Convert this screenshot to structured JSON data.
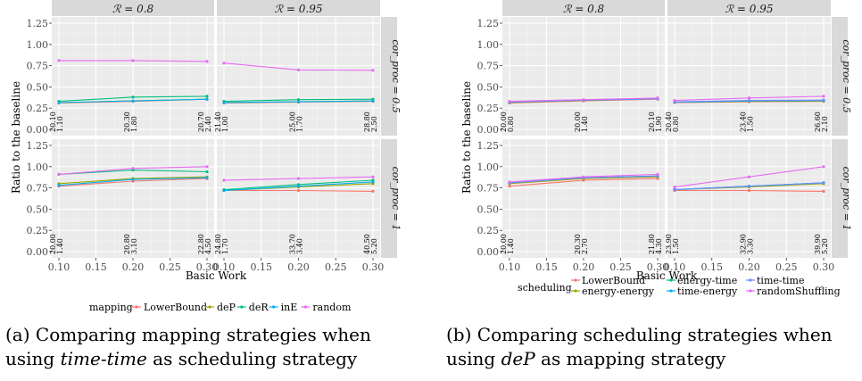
{
  "chart_data": [
    {
      "type": "line",
      "panel_id": "a",
      "xlabel": "Basic Work",
      "ylabel": "Ratio to the baseline",
      "xlim": [
        0.1,
        0.3
      ],
      "ylim": [
        0,
        1.25
      ],
      "x_ticks": [
        "0.10",
        "0.15",
        "0.20",
        "0.25",
        "0.30"
      ],
      "y_ticks": [
        "0.00",
        "0.25",
        "0.50",
        "0.75",
        "1.00",
        "1.25"
      ],
      "col_facets": [
        "ℛ = 0.8",
        "ℛ = 0.95"
      ],
      "row_facets": [
        "cor_proc = 0.5",
        "cor_proc = 1"
      ],
      "grid": true,
      "legend_position": "bottom",
      "legend_title": "mapping",
      "series": [
        {
          "name": "LowerBound",
          "color": "#F8766D"
        },
        {
          "name": "deP",
          "color": "#A3A500"
        },
        {
          "name": "deR",
          "color": "#00BF7D"
        },
        {
          "name": "inE",
          "color": "#00B0F6"
        },
        {
          "name": "random",
          "color": "#E76BF3"
        }
      ],
      "panels": [
        {
          "col": 0,
          "row": 0,
          "x": [
            0.1,
            0.2,
            0.3
          ],
          "labels": [
            [
              "20.10",
              "1.10"
            ],
            [
              "20.30",
              "1.80"
            ],
            [
              "20.70",
              "2.40"
            ]
          ],
          "values": {
            "LowerBound": [
              0.31,
              0.33,
              0.355
            ],
            "deP": [
              0.315,
              0.335,
              0.355
            ],
            "deR": [
              0.33,
              0.38,
              0.39
            ],
            "inE": [
              0.315,
              0.335,
              0.355
            ],
            "random": [
              0.81,
              0.81,
              0.8
            ]
          }
        },
        {
          "col": 1,
          "row": 0,
          "x": [
            0.1,
            0.2,
            0.3
          ],
          "labels": [
            [
              "21.40",
              "1.00"
            ],
            [
              "25.00",
              "1.70"
            ],
            [
              "28.80",
              "2.50"
            ]
          ],
          "values": {
            "LowerBound": [
              0.31,
              0.32,
              0.33
            ],
            "deP": [
              0.315,
              0.325,
              0.335
            ],
            "deR": [
              0.33,
              0.35,
              0.355
            ],
            "inE": [
              0.315,
              0.325,
              0.335
            ],
            "random": [
              0.78,
              0.7,
              0.695
            ]
          }
        },
        {
          "col": 0,
          "row": 1,
          "x": [
            0.1,
            0.2,
            0.3
          ],
          "labels": [
            [
              "20.00",
              "1.40"
            ],
            [
              "20.80",
              "3.10"
            ],
            [
              "22.80",
              "4.50"
            ]
          ],
          "values": {
            "LowerBound": [
              0.77,
              0.83,
              0.86
            ],
            "deP": [
              0.8,
              0.86,
              0.88
            ],
            "deR": [
              0.91,
              0.96,
              0.94
            ],
            "inE": [
              0.78,
              0.85,
              0.87
            ],
            "random": [
              0.91,
              0.98,
              1.0
            ]
          }
        },
        {
          "col": 1,
          "row": 1,
          "x": [
            0.1,
            0.2,
            0.3
          ],
          "labels": [
            [
              "24.80",
              "1.70"
            ],
            [
              "33.70",
              "3.40"
            ],
            [
              "40.50",
              "5.20"
            ]
          ],
          "values": {
            "LowerBound": [
              0.72,
              0.72,
              0.71
            ],
            "deP": [
              0.72,
              0.76,
              0.8
            ],
            "deR": [
              0.73,
              0.79,
              0.84
            ],
            "inE": [
              0.72,
              0.77,
              0.82
            ],
            "random": [
              0.84,
              0.86,
              0.88
            ]
          }
        }
      ]
    },
    {
      "type": "line",
      "panel_id": "b",
      "xlabel": "Basic Work",
      "ylabel": "Ratio to the baseline",
      "xlim": [
        0.1,
        0.3
      ],
      "ylim": [
        0,
        1.25
      ],
      "x_ticks": [
        "0.10",
        "0.15",
        "0.20",
        "0.25",
        "0.30"
      ],
      "y_ticks": [
        "0.00",
        "0.25",
        "0.50",
        "0.75",
        "1.00",
        "1.25"
      ],
      "col_facets": [
        "ℛ = 0.8",
        "ℛ = 0.95"
      ],
      "row_facets": [
        "cor_proc = 0.5",
        "cor_proc = 1"
      ],
      "grid": true,
      "legend_position": "bottom",
      "legend_title": "scheduling",
      "series": [
        {
          "name": "LowerBound",
          "color": "#F8766D"
        },
        {
          "name": "energy-energy",
          "color": "#A3A500"
        },
        {
          "name": "energy-time",
          "color": "#00BF7D"
        },
        {
          "name": "time-energy",
          "color": "#00B0F6"
        },
        {
          "name": "time-time",
          "color": "#6F8CFF"
        },
        {
          "name": "randomShuffling",
          "color": "#E76BF3"
        }
      ],
      "panels": [
        {
          "col": 0,
          "row": 0,
          "x": [
            0.1,
            0.2,
            0.3
          ],
          "labels": [
            [
              "20.00",
              "0.80"
            ],
            [
              "20.00",
              "1.40"
            ],
            [
              "20.10",
              "1.90"
            ]
          ],
          "values": {
            "LowerBound": [
              0.31,
              0.335,
              0.355
            ],
            "energy-energy": [
              0.315,
              0.34,
              0.36
            ],
            "energy-time": [
              0.32,
              0.345,
              0.36
            ],
            "time-energy": [
              0.32,
              0.345,
              0.36
            ],
            "time-time": [
              0.32,
              0.345,
              0.36
            ],
            "randomShuffling": [
              0.33,
              0.35,
              0.37
            ]
          }
        },
        {
          "col": 1,
          "row": 0,
          "x": [
            0.1,
            0.2,
            0.3
          ],
          "labels": [
            [
              "20.40",
              "0.80"
            ],
            [
              "23.40",
              "1.50"
            ],
            [
              "26.60",
              "2.10"
            ]
          ],
          "values": {
            "LowerBound": [
              0.315,
              0.325,
              0.33
            ],
            "energy-energy": [
              0.32,
              0.33,
              0.335
            ],
            "energy-time": [
              0.32,
              0.335,
              0.34
            ],
            "time-energy": [
              0.32,
              0.335,
              0.34
            ],
            "time-time": [
              0.325,
              0.34,
              0.345
            ],
            "randomShuffling": [
              0.34,
              0.37,
              0.39
            ]
          }
        },
        {
          "col": 0,
          "row": 1,
          "x": [
            0.1,
            0.2,
            0.3
          ],
          "labels": [
            [
              "20.00",
              "1.40"
            ],
            [
              "20.30",
              "2.70"
            ],
            [
              "21.80",
              "4.30"
            ]
          ],
          "values": {
            "LowerBound": [
              0.77,
              0.84,
              0.86
            ],
            "energy-energy": [
              0.8,
              0.86,
              0.88
            ],
            "energy-time": [
              0.81,
              0.87,
              0.89
            ],
            "time-energy": [
              0.81,
              0.87,
              0.89
            ],
            "time-time": [
              0.81,
              0.87,
              0.89
            ],
            "randomShuffling": [
              0.82,
              0.88,
              0.91
            ]
          }
        },
        {
          "col": 1,
          "row": 1,
          "x": [
            0.1,
            0.2,
            0.3
          ],
          "labels": [
            [
              "23.90",
              "1.50"
            ],
            [
              "32.90",
              "3.30"
            ],
            [
              "39.90",
              "5.20"
            ]
          ],
          "values": {
            "LowerBound": [
              0.72,
              0.72,
              0.71
            ],
            "energy-energy": [
              0.73,
              0.76,
              0.8
            ],
            "energy-time": [
              0.73,
              0.77,
              0.81
            ],
            "time-energy": [
              0.73,
              0.77,
              0.81
            ],
            "time-time": [
              0.73,
              0.77,
              0.81
            ],
            "randomShuffling": [
              0.76,
              0.88,
              1.0
            ]
          }
        }
      ]
    }
  ],
  "captions": {
    "a": {
      "prefix": "(a) Comparing mapping strategies when using ",
      "emph": "time-time",
      "suffix": " as scheduling strategy"
    },
    "b": {
      "prefix": "(b) Comparing scheduling strategies when using ",
      "emph": "deP",
      "suffix": " as mapping strategy"
    }
  }
}
